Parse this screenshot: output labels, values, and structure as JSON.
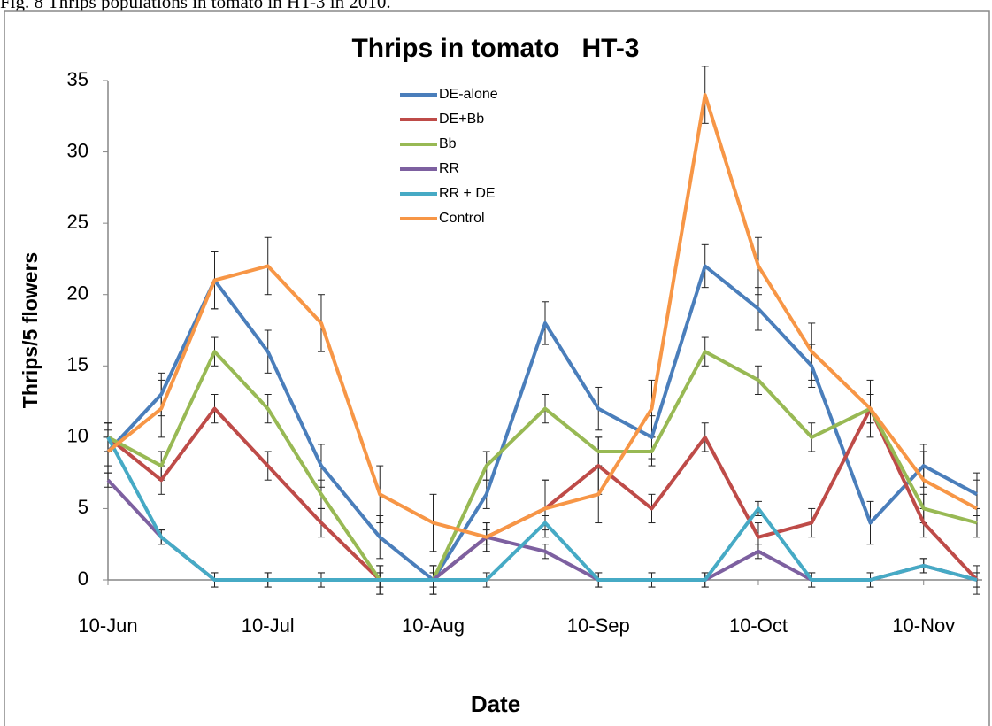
{
  "caption": "Fig. 8 Thrips populations in tomato in HT-3 in 2010.",
  "chart_data": {
    "type": "line",
    "title": "Thrips in tomato   HT-3",
    "x_label": "Date",
    "y_label": "Thrips/5 flowers",
    "x": [
      "10-Jun",
      "20-Jun",
      "30-Jun",
      "10-Jul",
      "20-Jul",
      "31-Jul",
      "10-Aug",
      "20-Aug",
      "31-Aug",
      "10-Sep",
      "20-Sep",
      "30-Sep",
      "10-Oct",
      "20-Oct",
      "31-Oct",
      "10-Nov",
      "20-Nov"
    ],
    "xlim": [
      "10-Jun",
      "21-Nov"
    ],
    "xticks": [
      "10-Jun",
      "10-Jul",
      "10-Aug",
      "10-Sep",
      "10-Oct",
      "10-Nov"
    ],
    "ylim": [
      0,
      35
    ],
    "yticks": [
      0,
      5,
      10,
      15,
      20,
      25,
      30,
      35
    ],
    "grid": false,
    "legend": "top",
    "series": [
      {
        "name": "DE-alone",
        "color": "#4a7ebb",
        "values": [
          9,
          13,
          21,
          16,
          8,
          3,
          0,
          6,
          18,
          12,
          10,
          22,
          19,
          15,
          4,
          8,
          6
        ],
        "errors": [
          1.5,
          1.5,
          2,
          1.5,
          1.5,
          1.5,
          1,
          1,
          1.5,
          1.5,
          1.5,
          1.5,
          1.5,
          1.5,
          1.5,
          1.5,
          1.5
        ]
      },
      {
        "name": "DE+Bb",
        "color": "#be4b48",
        "values": [
          10,
          7,
          12,
          8,
          4,
          0,
          0,
          3,
          5,
          8,
          5,
          10,
          3,
          4,
          12,
          4,
          0
        ],
        "errors": [
          1,
          1,
          1,
          1,
          1,
          1,
          1,
          1,
          2,
          2,
          1,
          1,
          1,
          1,
          1,
          1,
          1
        ]
      },
      {
        "name": "Bb",
        "color": "#98b954",
        "values": [
          10,
          8,
          16,
          12,
          6,
          0,
          0,
          8,
          12,
          9,
          9,
          16,
          14,
          10,
          12,
          5,
          4
        ],
        "errors": [
          1,
          1,
          1,
          1,
          1,
          1,
          1,
          1,
          1,
          1,
          1,
          1,
          1,
          1,
          1,
          1,
          1
        ]
      },
      {
        "name": "RR",
        "color": "#7d60a0",
        "values": [
          7,
          3,
          0,
          0,
          0,
          0,
          0,
          3,
          2,
          0,
          0,
          0,
          2,
          0,
          0,
          1,
          0
        ],
        "errors": [
          0.5,
          0.5,
          0.5,
          0.5,
          0.5,
          0.5,
          0.5,
          0.5,
          0.5,
          0.5,
          0.5,
          0.5,
          0.5,
          0.5,
          0.5,
          0.5,
          0.5
        ]
      },
      {
        "name": "RR + DE",
        "color": "#46aac5",
        "values": [
          10,
          3,
          0,
          0,
          0,
          0,
          0,
          0,
          4,
          0,
          0,
          0,
          5,
          0,
          0,
          1,
          0
        ],
        "errors": [
          1,
          0.5,
          0.5,
          0.5,
          0.5,
          0.5,
          0.5,
          0.5,
          0.5,
          0.5,
          0.5,
          0.5,
          0.5,
          0.5,
          0.5,
          0.5,
          0.5
        ]
      },
      {
        "name": "Control",
        "color": "#f79646",
        "values": [
          9,
          12,
          21,
          22,
          18,
          6,
          4,
          3,
          5,
          6,
          12,
          34,
          22,
          16,
          12,
          7,
          5
        ],
        "errors": [
          1,
          2,
          2,
          2,
          2,
          2,
          2,
          1,
          2,
          2,
          2,
          2,
          2,
          2,
          2,
          2,
          2
        ]
      }
    ]
  }
}
